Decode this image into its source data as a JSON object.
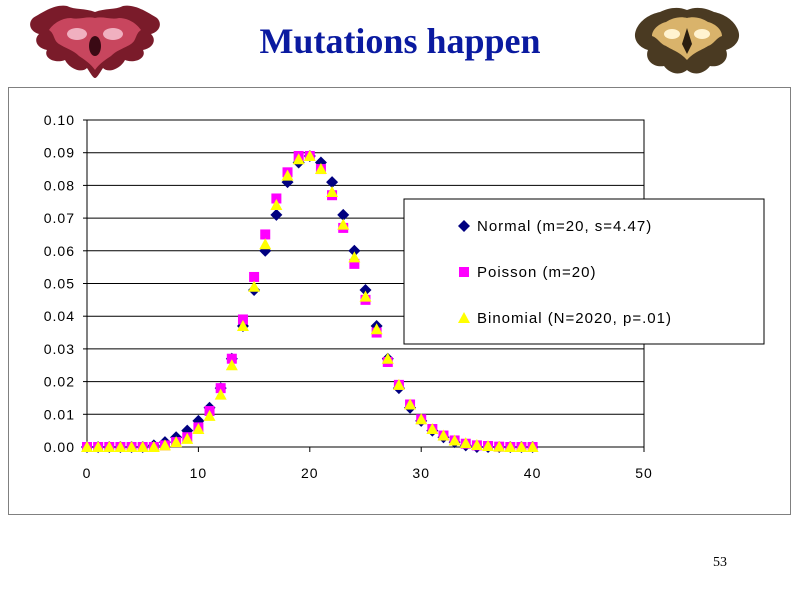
{
  "slide": {
    "title": "Mutations happen",
    "page_number": "53"
  },
  "decor": {
    "left_image": "inkblot-red-icon",
    "right_image": "inkblot-tan-icon"
  },
  "chart_data": {
    "type": "scatter",
    "title": "",
    "xlabel": "",
    "ylabel": "",
    "xlim": [
      0,
      50
    ],
    "ylim": [
      0,
      0.1
    ],
    "x_ticks": [
      "0",
      "10",
      "20",
      "30",
      "40",
      "50"
    ],
    "y_ticks": [
      "0.00",
      "0.01",
      "0.02",
      "0.03",
      "0.04",
      "0.05",
      "0.06",
      "0.07",
      "0.08",
      "0.09",
      "0.10"
    ],
    "grid": "horizontal",
    "legend_position": "right",
    "x": [
      0,
      1,
      2,
      3,
      4,
      5,
      6,
      7,
      8,
      9,
      10,
      11,
      12,
      13,
      14,
      15,
      16,
      17,
      18,
      19,
      20,
      21,
      22,
      23,
      24,
      25,
      26,
      27,
      28,
      29,
      30,
      31,
      32,
      33,
      34,
      35,
      36,
      37,
      38,
      39,
      40
    ],
    "series": [
      {
        "name": "Normal (m=20, s=4.47)",
        "marker": "diamond",
        "color": "#000080",
        "values": [
          0.0,
          0.0,
          0.0,
          0.0,
          0.0,
          0.0,
          0.0005,
          0.0015,
          0.003,
          0.005,
          0.008,
          0.012,
          0.018,
          0.027,
          0.037,
          0.048,
          0.06,
          0.071,
          0.081,
          0.087,
          0.089,
          0.087,
          0.081,
          0.071,
          0.06,
          0.048,
          0.037,
          0.027,
          0.018,
          0.012,
          0.008,
          0.005,
          0.003,
          0.0015,
          0.0005,
          0.0,
          0.0,
          0.0,
          0.0,
          0.0,
          0.0
        ]
      },
      {
        "name": "Poisson (m=20)",
        "marker": "square",
        "color": "#ff00ff",
        "values": [
          0.0,
          0.0,
          0.0,
          0.0,
          0.0,
          0.0,
          0.0,
          0.0005,
          0.0015,
          0.003,
          0.006,
          0.011,
          0.018,
          0.027,
          0.039,
          0.052,
          0.065,
          0.076,
          0.084,
          0.089,
          0.089,
          0.085,
          0.077,
          0.067,
          0.056,
          0.045,
          0.035,
          0.026,
          0.019,
          0.013,
          0.0085,
          0.0055,
          0.0035,
          0.002,
          0.001,
          0.0005,
          0.0003,
          0.0001,
          0.0,
          0.0,
          0.0
        ]
      },
      {
        "name": "Binomial (N=2020, p=.01)",
        "marker": "triangle",
        "color": "#ffff00",
        "values": [
          0.0,
          0.0,
          0.0,
          0.0,
          0.0,
          0.0,
          0.0,
          0.0005,
          0.0015,
          0.0025,
          0.0055,
          0.0095,
          0.016,
          0.025,
          0.037,
          0.049,
          0.062,
          0.074,
          0.083,
          0.088,
          0.089,
          0.085,
          0.078,
          0.068,
          0.058,
          0.046,
          0.036,
          0.027,
          0.019,
          0.013,
          0.0085,
          0.0055,
          0.0035,
          0.002,
          0.0012,
          0.0006,
          0.0003,
          0.0001,
          0.0,
          0.0,
          0.0
        ]
      }
    ]
  }
}
